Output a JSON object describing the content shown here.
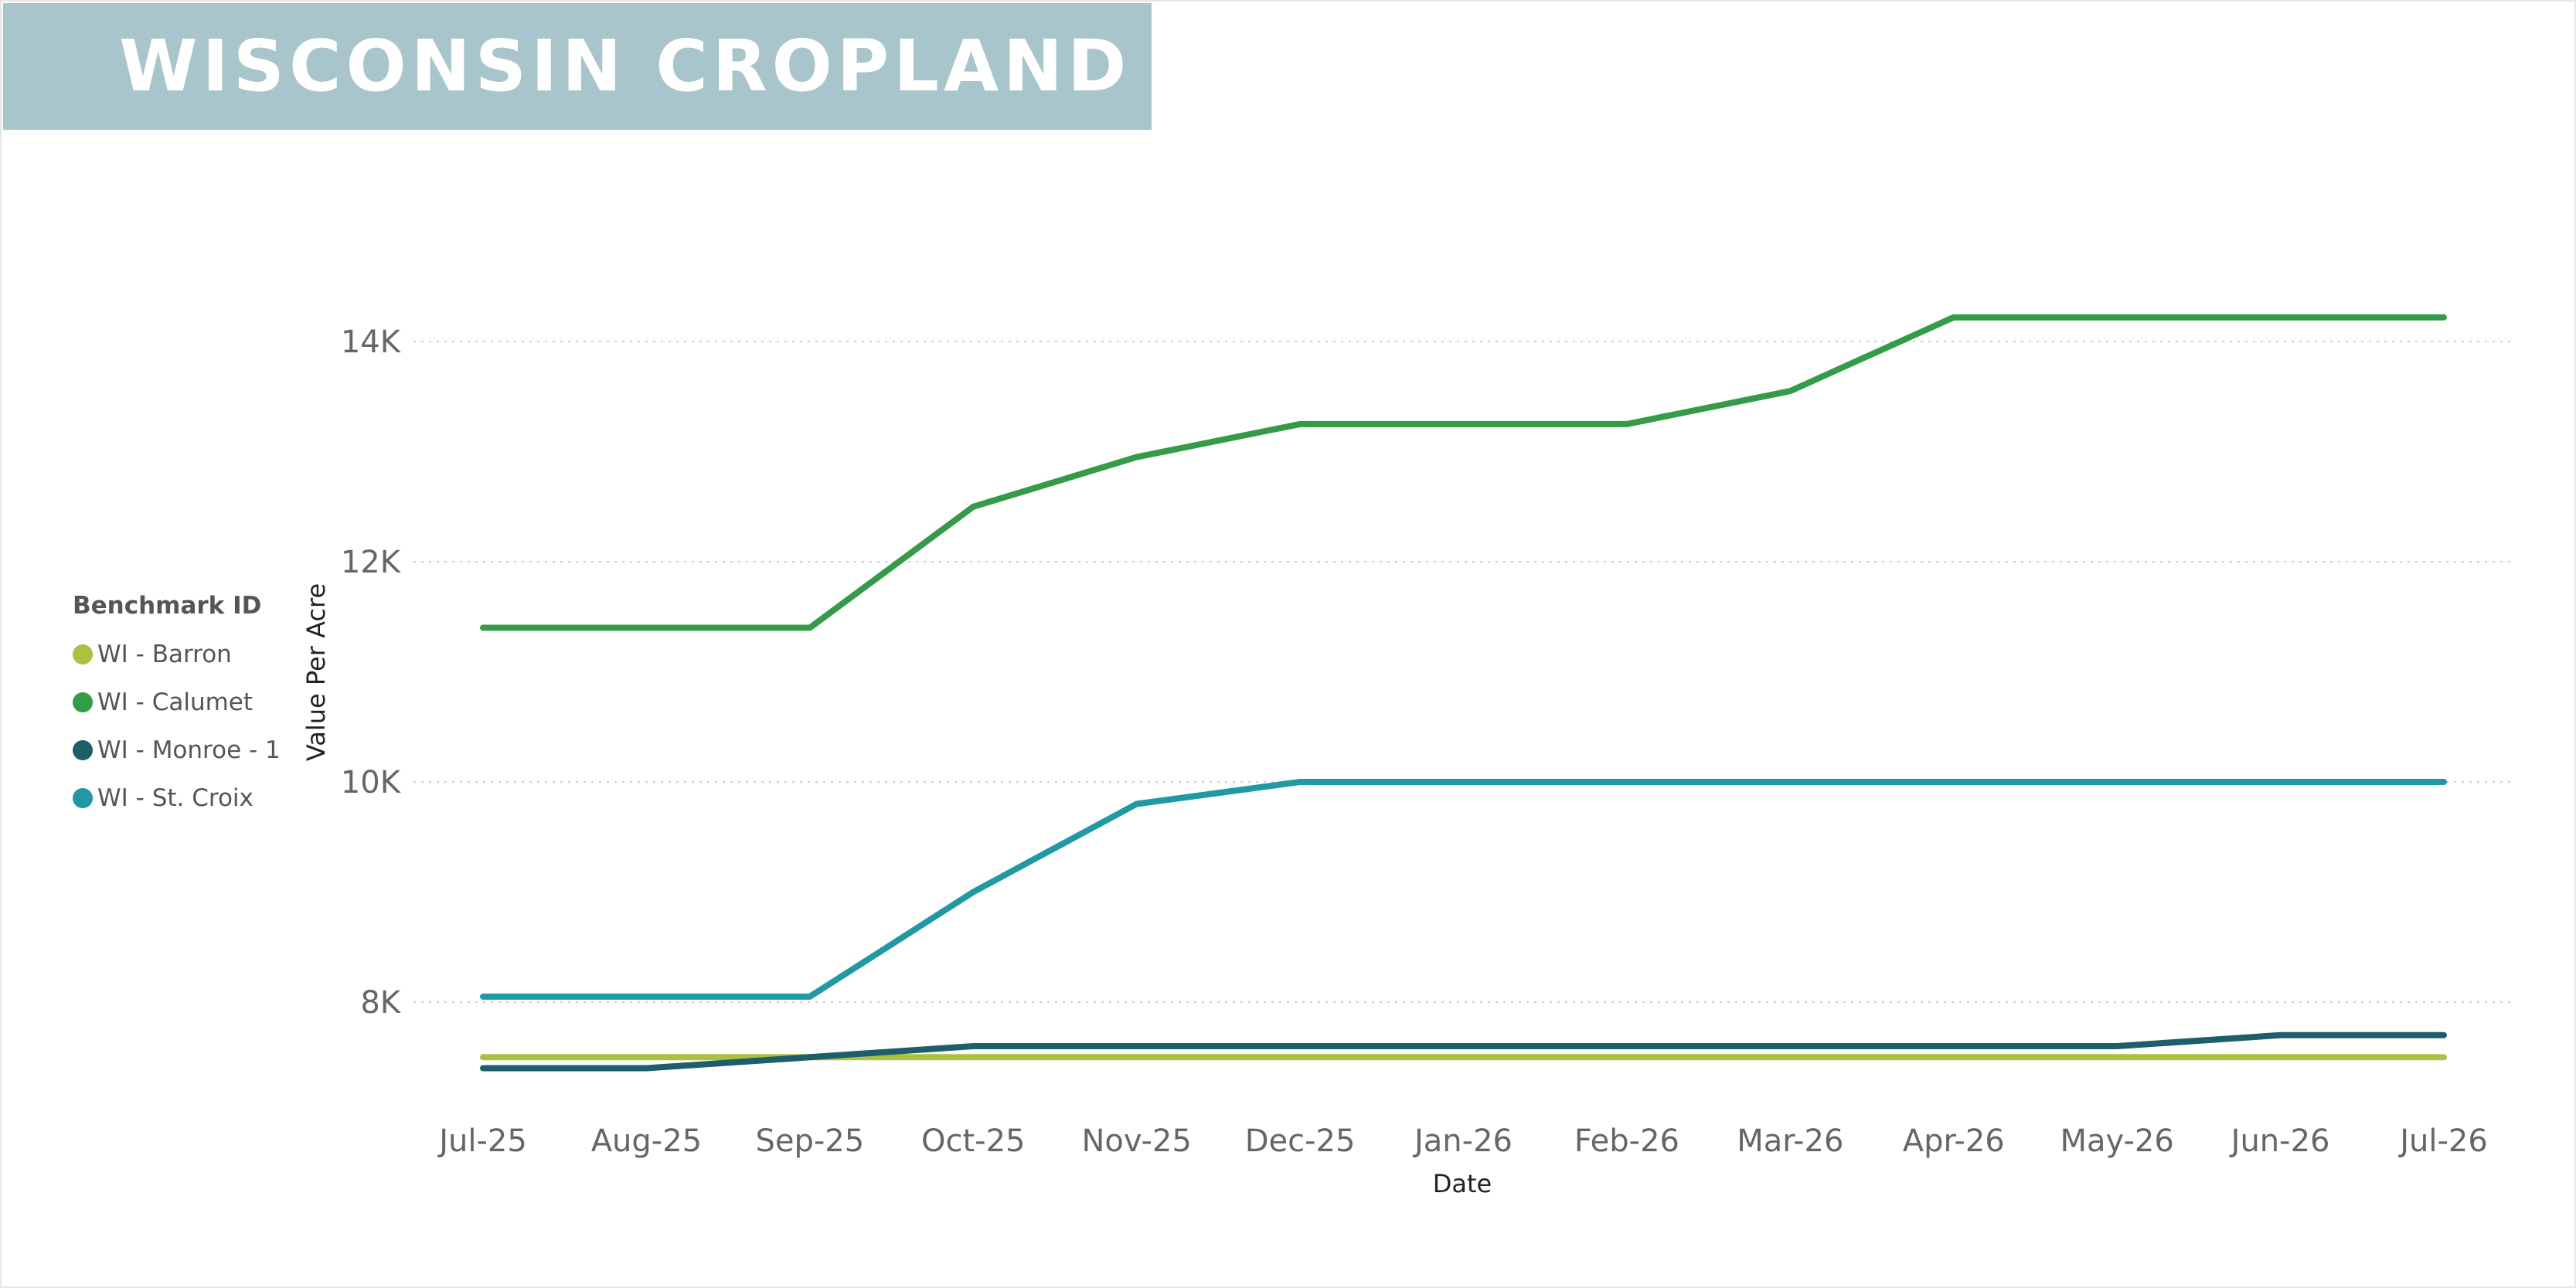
{
  "title": "WISCONSIN CROPLAND C",
  "colors": {
    "banner": "#a8c5cb",
    "WI - Barron": "#a9c23f",
    "WI - Calumet": "#349b48",
    "WI - Monroe - 1": "#1d5e6b",
    "WI - St. Croix": "#2199a4"
  },
  "chart_data": {
    "type": "line",
    "title": "WISCONSIN CROPLAND C",
    "xlabel": "Date",
    "ylabel": "Value Per Acre",
    "x": [
      "Jul-25",
      "Aug-25",
      "Sep-25",
      "Oct-25",
      "Nov-25",
      "Dec-25",
      "Jan-26",
      "Feb-26",
      "Mar-26",
      "Apr-26",
      "May-26",
      "Jun-26",
      "Jul-26"
    ],
    "y_ticks": [
      "8K",
      "10K",
      "12K",
      "14K"
    ],
    "y_tick_values": [
      8000,
      10000,
      12000,
      14000
    ],
    "ylim": [
      6900,
      15500
    ],
    "grid": "horizontal dotted",
    "legend_title": "Benchmark ID",
    "legend_position": "left",
    "series": [
      {
        "name": "WI - Barron",
        "color": "#a9c23f",
        "values": [
          7500,
          7500,
          7500,
          7500,
          7500,
          7500,
          7500,
          7500,
          7500,
          7500,
          7500,
          7500,
          7500
        ]
      },
      {
        "name": "WI - Calumet",
        "color": "#349b48",
        "values": [
          11400,
          11400,
          11400,
          12500,
          12950,
          13250,
          13250,
          13250,
          13550,
          14220,
          14220,
          14220,
          14220
        ]
      },
      {
        "name": "WI - Monroe - 1",
        "color": "#1d5e6b",
        "values": [
          7400,
          7400,
          7500,
          7600,
          7600,
          7600,
          7600,
          7600,
          7600,
          7600,
          7600,
          7700,
          7700
        ]
      },
      {
        "name": "WI - St. Croix",
        "color": "#2199a4",
        "values": [
          8050,
          8050,
          8050,
          9000,
          9800,
          10000,
          10000,
          10000,
          10000,
          10000,
          10000,
          10000,
          10000
        ]
      }
    ]
  }
}
